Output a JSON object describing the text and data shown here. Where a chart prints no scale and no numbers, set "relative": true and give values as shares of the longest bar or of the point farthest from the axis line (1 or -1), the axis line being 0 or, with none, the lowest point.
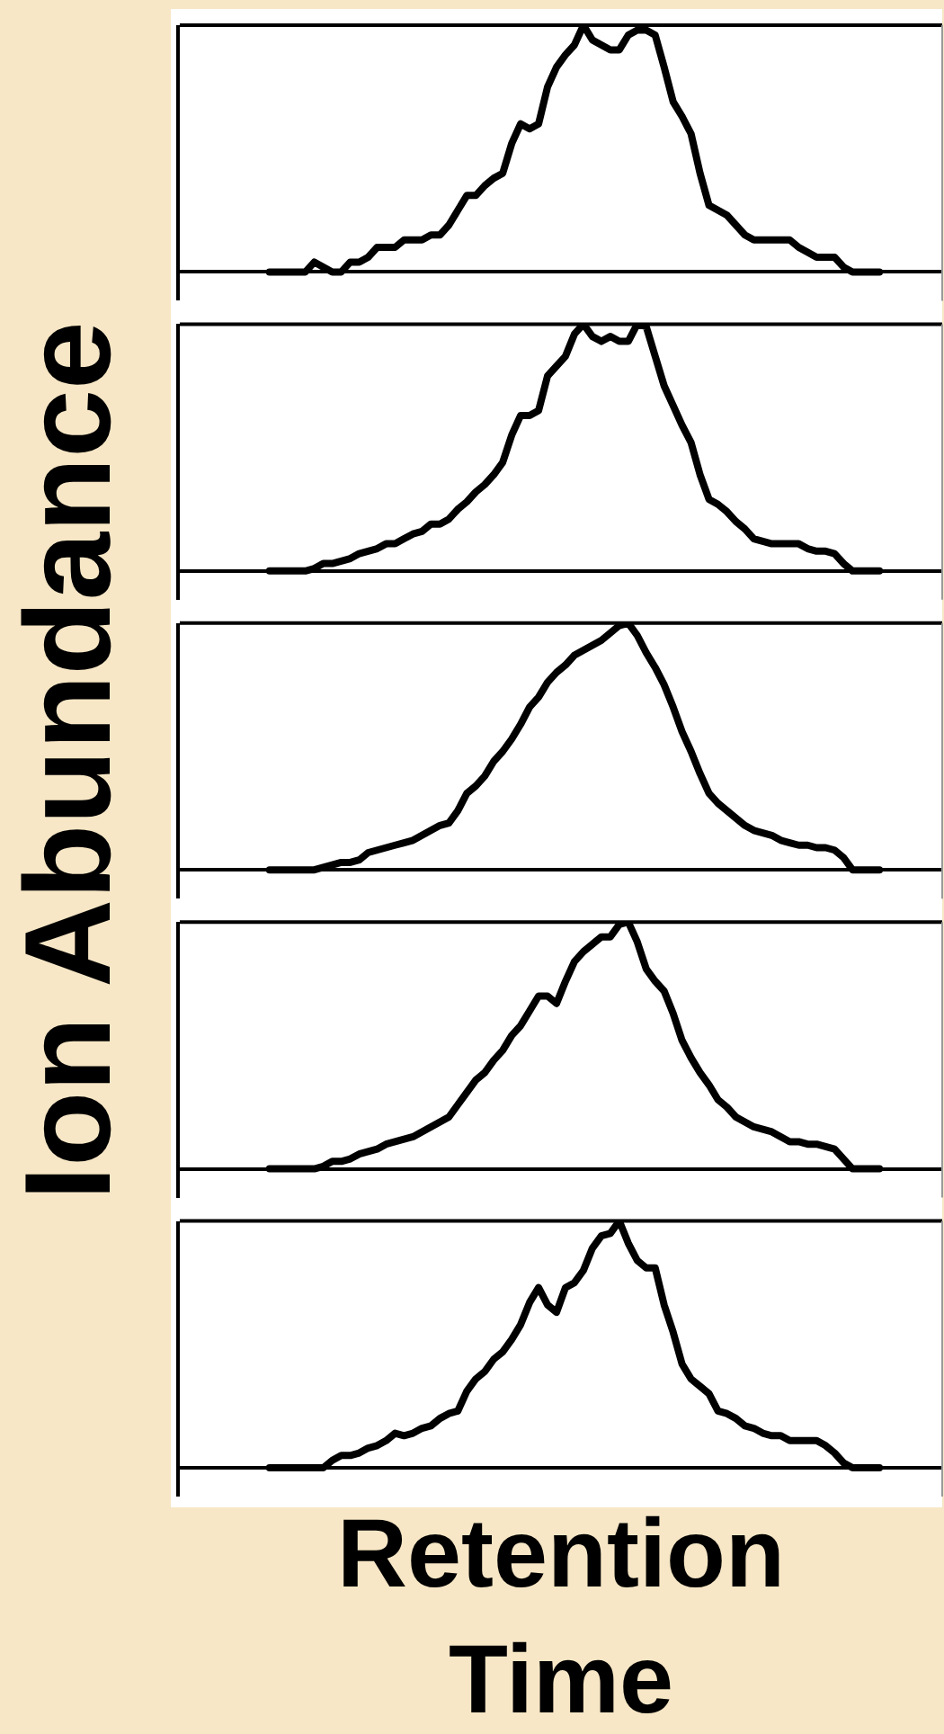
{
  "chart_data": [
    {
      "type": "line",
      "relative": true,
      "color": "#000000",
      "categories": [
        null,
        null,
        null,
        null,
        null,
        null,
        null,
        null,
        null,
        null,
        null,
        null,
        null,
        null,
        null,
        null,
        null,
        null,
        null,
        null,
        null,
        null,
        null,
        null,
        null,
        null,
        null,
        null,
        null,
        null,
        null,
        null,
        null,
        null,
        null,
        null,
        null,
        null,
        null,
        null,
        null,
        null,
        null,
        null,
        null,
        null,
        null,
        null,
        null,
        null,
        null,
        null,
        null,
        null,
        null,
        null,
        null,
        null,
        null,
        null,
        null,
        null,
        null,
        null,
        null,
        null,
        null,
        null,
        null,
        null,
        null,
        null,
        null,
        null,
        null,
        null,
        null,
        null,
        null,
        null,
        null,
        null,
        null,
        null,
        null,
        null
      ],
      "values": [
        null,
        null,
        null,
        null,
        null,
        null,
        null,
        null,
        null,
        null,
        0,
        0,
        0,
        0,
        0,
        0.04,
        0.02,
        0,
        0,
        0.04,
        0.04,
        0.06,
        0.1,
        0.1,
        0.1,
        0.13,
        0.13,
        0.13,
        0.15,
        0.15,
        0.19,
        0.25,
        0.31,
        0.31,
        0.35,
        0.38,
        0.4,
        0.52,
        0.6,
        0.58,
        0.6,
        0.75,
        0.83,
        0.88,
        0.92,
        1,
        0.94,
        0.92,
        0.9,
        0.9,
        0.96,
        0.98,
        0.98,
        0.96,
        0.83,
        0.69,
        0.63,
        0.56,
        0.4,
        0.27,
        0.25,
        0.23,
        0.19,
        0.15,
        0.13,
        0.13,
        0.13,
        0.13,
        0.13,
        0.1,
        0.08,
        0.06,
        0.06,
        0.06,
        0.02,
        0,
        0,
        0,
        0,
        null,
        null,
        null,
        null,
        null,
        null,
        null
      ]
    },
    {
      "type": "line",
      "relative": true,
      "color": "#000000",
      "categories": [
        null,
        null,
        null,
        null,
        null,
        null,
        null,
        null,
        null,
        null,
        null,
        null,
        null,
        null,
        null,
        null,
        null,
        null,
        null,
        null,
        null,
        null,
        null,
        null,
        null,
        null,
        null,
        null,
        null,
        null,
        null,
        null,
        null,
        null,
        null,
        null,
        null,
        null,
        null,
        null,
        null,
        null,
        null,
        null,
        null,
        null,
        null,
        null,
        null,
        null,
        null,
        null,
        null,
        null,
        null,
        null,
        null,
        null,
        null,
        null,
        null,
        null,
        null,
        null,
        null,
        null,
        null,
        null,
        null,
        null,
        null,
        null,
        null,
        null,
        null,
        null,
        null,
        null,
        null,
        null,
        null,
        null,
        null,
        null,
        null,
        null
      ],
      "values": [
        null,
        null,
        null,
        null,
        null,
        null,
        null,
        null,
        null,
        null,
        0,
        0,
        0,
        0,
        0,
        0.01,
        0.03,
        0.03,
        0.04,
        0.05,
        0.07,
        0.08,
        0.09,
        0.11,
        0.11,
        0.13,
        0.15,
        0.16,
        0.19,
        0.19,
        0.21,
        0.25,
        0.28,
        0.32,
        0.35,
        0.39,
        0.44,
        0.55,
        0.63,
        0.63,
        0.65,
        0.79,
        0.83,
        0.87,
        0.96,
        1,
        0.95,
        0.93,
        0.95,
        0.93,
        0.93,
        1,
        0.99,
        0.87,
        0.75,
        0.67,
        0.59,
        0.52,
        0.39,
        0.29,
        0.27,
        0.24,
        0.2,
        0.17,
        0.13,
        0.12,
        0.11,
        0.11,
        0.11,
        0.11,
        0.09,
        0.08,
        0.08,
        0.07,
        0.03,
        0,
        0,
        0,
        0,
        null,
        null,
        null,
        null,
        null,
        null,
        null
      ]
    },
    {
      "type": "line",
      "relative": true,
      "color": "#000000",
      "ylabel": "Ion Abundance",
      "categories": [
        null,
        null,
        null,
        null,
        null,
        null,
        null,
        null,
        null,
        null,
        null,
        null,
        null,
        null,
        null,
        null,
        null,
        null,
        null,
        null,
        null,
        null,
        null,
        null,
        null,
        null,
        null,
        null,
        null,
        null,
        null,
        null,
        null,
        null,
        null,
        null,
        null,
        null,
        null,
        null,
        null,
        null,
        null,
        null,
        null,
        null,
        null,
        null,
        null,
        null,
        null,
        null,
        null,
        null,
        null,
        null,
        null,
        null,
        null,
        null,
        null,
        null,
        null,
        null,
        null,
        null,
        null,
        null,
        null,
        null,
        null,
        null,
        null,
        null,
        null,
        null,
        null,
        null,
        null,
        null,
        null,
        null,
        null,
        null,
        null,
        null
      ],
      "values": [
        null,
        null,
        null,
        null,
        null,
        null,
        null,
        null,
        null,
        null,
        0,
        0,
        0,
        0,
        0,
        0,
        0.01,
        0.02,
        0.03,
        0.03,
        0.04,
        0.07,
        0.08,
        0.09,
        0.1,
        0.11,
        0.12,
        0.14,
        0.16,
        0.18,
        0.19,
        0.24,
        0.31,
        0.34,
        0.38,
        0.44,
        0.48,
        0.53,
        0.59,
        0.66,
        0.7,
        0.76,
        0.8,
        0.83,
        0.87,
        0.89,
        0.91,
        0.93,
        0.96,
        0.99,
        1,
        0.95,
        0.88,
        0.82,
        0.75,
        0.66,
        0.56,
        0.48,
        0.39,
        0.31,
        0.27,
        0.24,
        0.21,
        0.18,
        0.16,
        0.15,
        0.14,
        0.12,
        0.11,
        0.1,
        0.1,
        0.09,
        0.09,
        0.08,
        0.05,
        0,
        0,
        0,
        0,
        null,
        null,
        null,
        null,
        null,
        null,
        null
      ]
    },
    {
      "type": "line",
      "relative": true,
      "color": "#000000",
      "categories": [
        null,
        null,
        null,
        null,
        null,
        null,
        null,
        null,
        null,
        null,
        null,
        null,
        null,
        null,
        null,
        null,
        null,
        null,
        null,
        null,
        null,
        null,
        null,
        null,
        null,
        null,
        null,
        null,
        null,
        null,
        null,
        null,
        null,
        null,
        null,
        null,
        null,
        null,
        null,
        null,
        null,
        null,
        null,
        null,
        null,
        null,
        null,
        null,
        null,
        null,
        null,
        null,
        null,
        null,
        null,
        null,
        null,
        null,
        null,
        null,
        null,
        null,
        null,
        null,
        null,
        null,
        null,
        null,
        null,
        null,
        null,
        null,
        null,
        null,
        null,
        null,
        null,
        null,
        null,
        null,
        null,
        null,
        null,
        null,
        null,
        null
      ],
      "values": [
        null,
        null,
        null,
        null,
        null,
        null,
        null,
        null,
        null,
        null,
        0,
        0,
        0,
        0,
        0,
        0,
        0.01,
        0.03,
        0.03,
        0.04,
        0.06,
        0.07,
        0.08,
        0.1,
        0.11,
        0.12,
        0.13,
        0.15,
        0.17,
        0.19,
        0.21,
        0.26,
        0.31,
        0.36,
        0.39,
        0.44,
        0.48,
        0.54,
        0.58,
        0.64,
        0.7,
        0.7,
        0.67,
        0.76,
        0.84,
        0.88,
        0.91,
        0.94,
        0.94,
        0.99,
        1,
        0.92,
        0.81,
        0.76,
        0.72,
        0.63,
        0.52,
        0.45,
        0.39,
        0.34,
        0.28,
        0.25,
        0.21,
        0.19,
        0.17,
        0.16,
        0.15,
        0.13,
        0.11,
        0.11,
        0.1,
        0.1,
        0.09,
        0.08,
        0.04,
        0,
        0,
        0,
        0,
        null,
        null,
        null,
        null,
        null,
        null,
        null
      ]
    },
    {
      "type": "line",
      "relative": true,
      "color": "#000000",
      "xlabel": "Retention Time",
      "categories": [
        null,
        null,
        null,
        null,
        null,
        null,
        null,
        null,
        null,
        null,
        null,
        null,
        null,
        null,
        null,
        null,
        null,
        null,
        null,
        null,
        null,
        null,
        null,
        null,
        null,
        null,
        null,
        null,
        null,
        null,
        null,
        null,
        null,
        null,
        null,
        null,
        null,
        null,
        null,
        null,
        null,
        null,
        null,
        null,
        null,
        null,
        null,
        null,
        null,
        null,
        null,
        null,
        null,
        null,
        null,
        null,
        null,
        null,
        null,
        null,
        null,
        null,
        null,
        null,
        null,
        null,
        null,
        null,
        null,
        null,
        null,
        null,
        null,
        null,
        null,
        null,
        null,
        null,
        null,
        null,
        null,
        null,
        null,
        null,
        null,
        null
      ],
      "values": [
        null,
        null,
        null,
        null,
        null,
        null,
        null,
        null,
        null,
        null,
        0,
        0,
        0,
        0,
        0,
        0,
        0,
        0.03,
        0.05,
        0.05,
        0.06,
        0.08,
        0.09,
        0.11,
        0.14,
        0.13,
        0.14,
        0.16,
        0.17,
        0.2,
        0.22,
        0.23,
        0.31,
        0.36,
        0.39,
        0.44,
        0.47,
        0.52,
        0.58,
        0.67,
        0.73,
        0.66,
        0.63,
        0.73,
        0.75,
        0.8,
        0.89,
        0.94,
        0.95,
        1,
        0.91,
        0.84,
        0.81,
        0.81,
        0.66,
        0.55,
        0.42,
        0.36,
        0.33,
        0.3,
        0.23,
        0.22,
        0.2,
        0.17,
        0.16,
        0.14,
        0.13,
        0.13,
        0.11,
        0.11,
        0.11,
        0.11,
        0.09,
        0.06,
        0.02,
        0,
        0,
        0,
        0,
        null,
        null,
        null,
        null,
        null,
        null,
        null
      ]
    }
  ]
}
